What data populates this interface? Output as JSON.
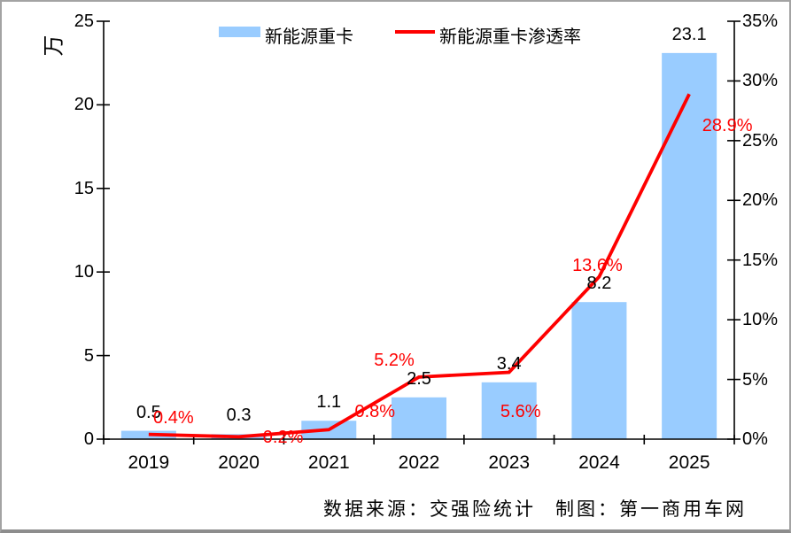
{
  "chart_data": {
    "type": "bar+line combo",
    "categories": [
      "2019",
      "2020",
      "2021",
      "2022",
      "2023",
      "2024",
      "2025"
    ],
    "series": [
      {
        "name": "新能源重卡",
        "type": "bar",
        "axis": "left",
        "values": [
          0.5,
          0.3,
          1.1,
          2.5,
          3.4,
          8.2,
          23.1
        ],
        "labels": [
          "0.5",
          "0.3",
          "1.1",
          "2.5",
          "3.4",
          "8.2",
          "23.1"
        ]
      },
      {
        "name": "新能源重卡渗透率",
        "type": "line",
        "axis": "right",
        "values": [
          0.4,
          0.2,
          0.8,
          5.2,
          5.6,
          13.6,
          28.9
        ],
        "labels": [
          "0.4%",
          "0.2%",
          "0.8%",
          "5.2%",
          "5.6%",
          "13.6%",
          "28.9%"
        ]
      }
    ],
    "left_axis": {
      "title": "万",
      "min": 0,
      "max": 25,
      "ticks": [
        "0",
        "5",
        "10",
        "15",
        "20",
        "25"
      ]
    },
    "right_axis": {
      "min": 0,
      "max": 35,
      "ticks": [
        "0%",
        "5%",
        "10%",
        "15%",
        "20%",
        "25%",
        "30%",
        "35%"
      ]
    },
    "grid": "off",
    "legend_position": "top"
  },
  "legend": {
    "bar_label": "新能源重卡",
    "line_label": "新能源重卡渗透率"
  },
  "footer": {
    "source": "数据来源：交强险统计",
    "credit": "制图：第一商用车网"
  },
  "colors": {
    "bar": "#99ccff",
    "line": "#fe0000",
    "label_red": "#fe0000",
    "axis": "#000000",
    "text": "#000000",
    "frame": "#a3a3a3"
  }
}
